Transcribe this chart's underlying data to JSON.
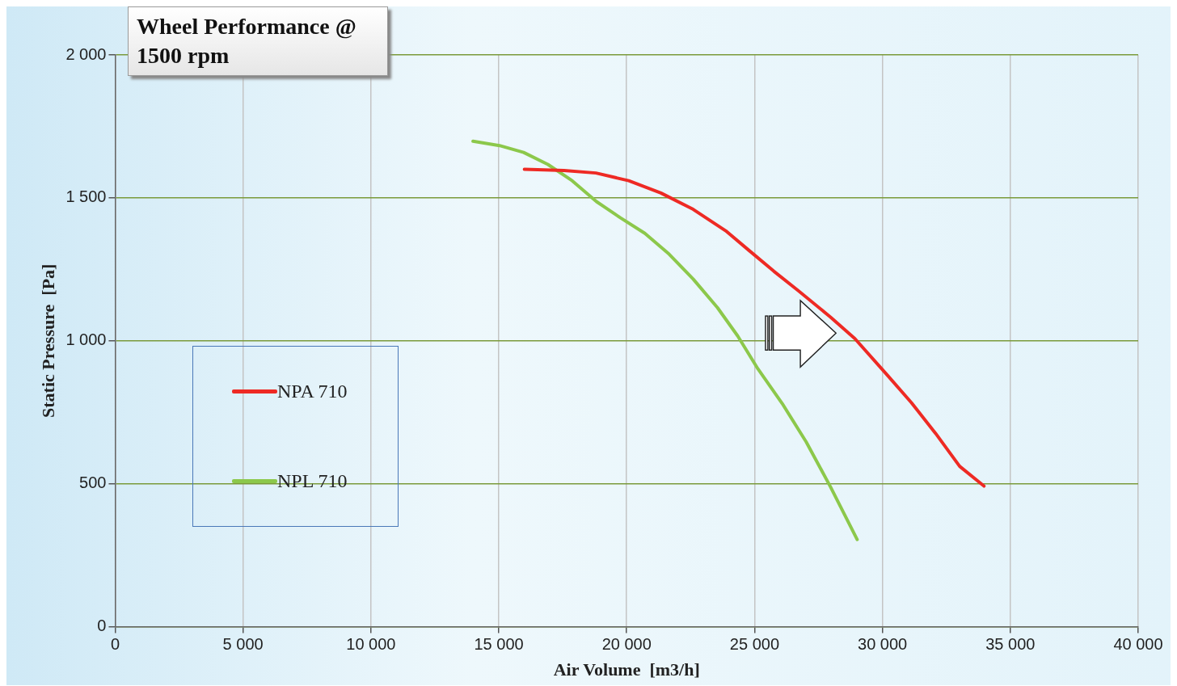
{
  "chart_data": {
    "type": "line",
    "title": "Wheel Performance @ 1500 rpm",
    "xlabel": "Air Volume  [m3/h]",
    "ylabel": "Static Pressure  [Pa]",
    "xlim": [
      0,
      40000
    ],
    "ylim": [
      0,
      2000
    ],
    "xticks": [
      0,
      {
        "value": 5000,
        "label": "5 000"
      },
      {
        "value": 10000,
        "label": "10 000"
      },
      {
        "value": 15000,
        "label": "15 000"
      },
      {
        "value": 20000,
        "label": "20 000"
      },
      {
        "value": 25000,
        "label": "25 000"
      },
      {
        "value": 30000,
        "label": "30 000"
      },
      {
        "value": 35000,
        "label": "35 000"
      },
      {
        "value": 40000,
        "label": "40 000"
      }
    ],
    "yticks": [
      0,
      500,
      {
        "value": 1000,
        "label": "1 000"
      },
      {
        "value": 1500,
        "label": "1 500"
      },
      {
        "value": 2000,
        "label": "2 000"
      }
    ],
    "grid": true,
    "legend": "left",
    "marker": "none",
    "line_style": "solid",
    "series": [
      {
        "name": "NPA 710",
        "color": "#ee2a24",
        "x": [
          16000,
          17550,
          18800,
          20080,
          21340,
          22600,
          23870,
          24800,
          25760,
          26700,
          27970,
          28920,
          30180,
          31130,
          32080,
          33020,
          33970
        ],
        "values": [
          1600,
          1596,
          1587,
          1560,
          1517,
          1460,
          1385,
          1315,
          1243,
          1176,
          1083,
          1008,
          881,
          784,
          676,
          561,
          492
        ]
      },
      {
        "name": "NPL 710",
        "color": "#8cc84b",
        "x": [
          13990,
          15030,
          15970,
          16920,
          17870,
          18820,
          19760,
          20710,
          21660,
          22600,
          23550,
          24340,
          25130,
          26080,
          27020,
          27970,
          29010
        ],
        "values": [
          1698,
          1683,
          1659,
          1617,
          1560,
          1487,
          1430,
          1376,
          1303,
          1216,
          1116,
          1017,
          902,
          781,
          646,
          489,
          305
        ]
      }
    ]
  }
}
